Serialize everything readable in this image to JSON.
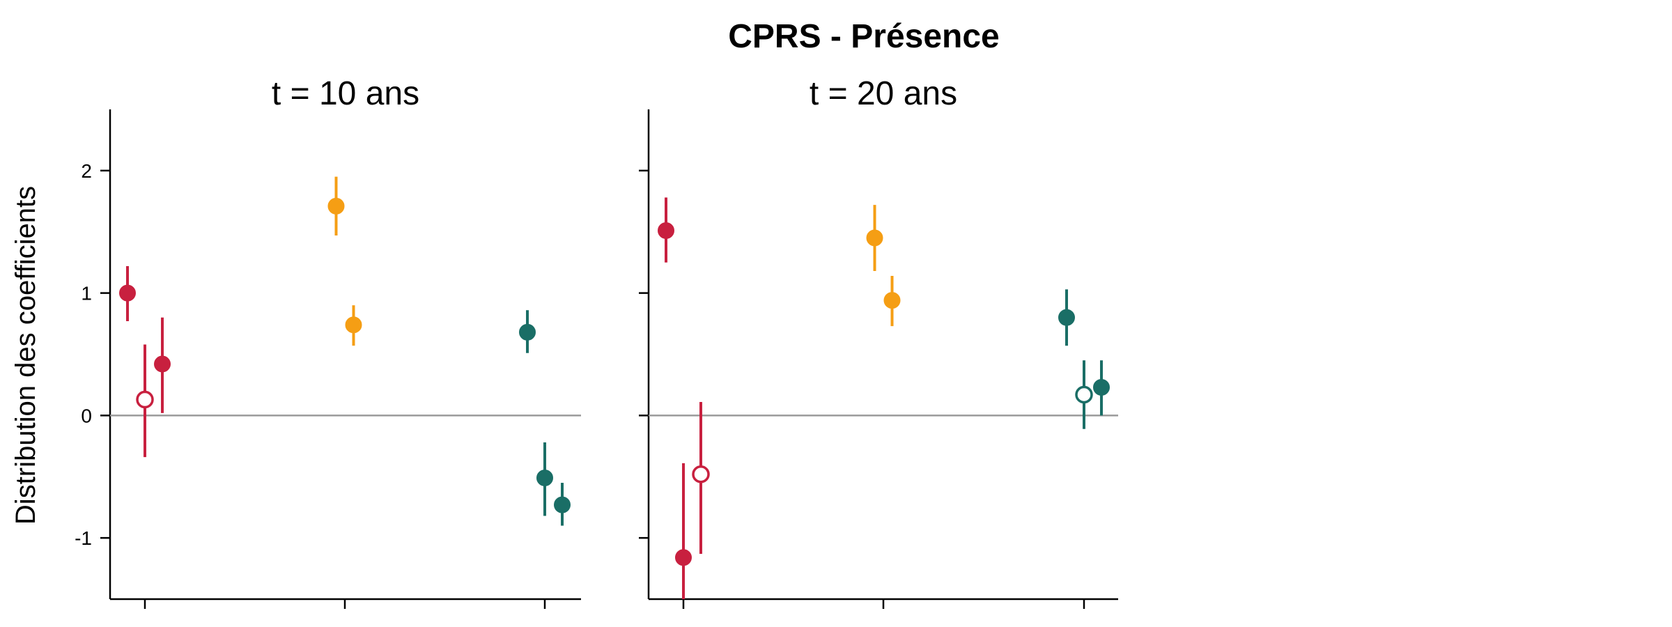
{
  "chart_data": {
    "type": "scatter",
    "title": "CPRS - Présence",
    "ylabel": "Distribution des coefficients",
    "yticks": [
      -1,
      0,
      1,
      2
    ],
    "ylim": [
      -1.5,
      2.5
    ],
    "colors": {
      "red": "#c8203f",
      "orange": "#f59e14",
      "teal": "#1a6e66",
      "zero_line": "#9a9a9a"
    },
    "panels": [
      {
        "title": "t = 10 ans",
        "points": [
          {
            "group": 1,
            "offset": -1,
            "color": "red",
            "y": 1.0,
            "lo": 0.77,
            "hi": 1.22,
            "filled": true
          },
          {
            "group": 1,
            "offset": 0,
            "color": "red",
            "y": 0.13,
            "lo": -0.34,
            "hi": 0.58,
            "filled": false
          },
          {
            "group": 1,
            "offset": 1,
            "color": "red",
            "y": 0.42,
            "lo": 0.02,
            "hi": 0.8,
            "filled": true
          },
          {
            "group": 2,
            "offset": -0.5,
            "color": "orange",
            "y": 1.71,
            "lo": 1.47,
            "hi": 1.95,
            "filled": true
          },
          {
            "group": 2,
            "offset": 0.5,
            "color": "orange",
            "y": 0.74,
            "lo": 0.57,
            "hi": 0.9,
            "filled": true
          },
          {
            "group": 3,
            "offset": -1,
            "color": "teal",
            "y": 0.68,
            "lo": 0.51,
            "hi": 0.86,
            "filled": true
          },
          {
            "group": 3,
            "offset": 0,
            "color": "teal",
            "y": -0.51,
            "lo": -0.82,
            "hi": -0.22,
            "filled": true
          },
          {
            "group": 3,
            "offset": 1,
            "color": "teal",
            "y": -0.73,
            "lo": -0.9,
            "hi": -0.55,
            "filled": true
          }
        ]
      },
      {
        "title": "t = 20 ans",
        "points": [
          {
            "group": 1,
            "offset": -1,
            "color": "red",
            "y": 1.51,
            "lo": 1.25,
            "hi": 1.78,
            "filled": true
          },
          {
            "group": 1,
            "offset": 0,
            "color": "red",
            "y": -1.16,
            "lo": -1.9,
            "hi": -0.39,
            "filled": true
          },
          {
            "group": 1,
            "offset": 1,
            "color": "red",
            "y": -0.48,
            "lo": -1.13,
            "hi": 0.11,
            "filled": false
          },
          {
            "group": 2,
            "offset": -0.5,
            "color": "orange",
            "y": 1.45,
            "lo": 1.18,
            "hi": 1.72,
            "filled": true
          },
          {
            "group": 2,
            "offset": 0.5,
            "color": "orange",
            "y": 0.94,
            "lo": 0.73,
            "hi": 1.14,
            "filled": true
          },
          {
            "group": 3,
            "offset": -1,
            "color": "teal",
            "y": 0.8,
            "lo": 0.57,
            "hi": 1.03,
            "filled": true
          },
          {
            "group": 3,
            "offset": 0,
            "color": "teal",
            "y": 0.17,
            "lo": -0.11,
            "hi": 0.45,
            "filled": false
          },
          {
            "group": 3,
            "offset": 1,
            "color": "teal",
            "y": 0.23,
            "lo": 0.0,
            "hi": 0.45,
            "filled": true
          }
        ]
      }
    ]
  }
}
